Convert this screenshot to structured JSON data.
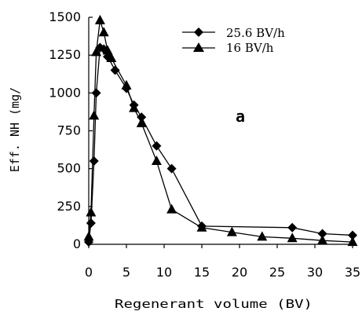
{
  "chart_data": {
    "type": "line",
    "xlabel": "Regenerant volume (BV)",
    "ylabel": "Eff. NH (mg/",
    "xlim": [
      0,
      35
    ],
    "ylim": [
      0,
      1500
    ],
    "x_ticks": [
      0,
      5,
      10,
      15,
      20,
      25,
      30,
      35
    ],
    "y_ticks": [
      0,
      250,
      500,
      750,
      1000,
      1250,
      1500
    ],
    "grid": false,
    "legend_position": "top-right",
    "annotation": "a",
    "series": [
      {
        "name": "25.6 BV/h",
        "marker": "diamond",
        "points": [
          [
            0,
            15
          ],
          [
            0.3,
            140
          ],
          [
            0.7,
            550
          ],
          [
            1,
            1000
          ],
          [
            1.5,
            1300
          ],
          [
            2,
            1290
          ],
          [
            2.5,
            1240
          ],
          [
            3.5,
            1150
          ],
          [
            5,
            1030
          ],
          [
            6,
            920
          ],
          [
            7,
            840
          ],
          [
            9,
            650
          ],
          [
            11,
            500
          ],
          [
            15,
            120
          ],
          [
            27,
            110
          ],
          [
            31,
            70
          ],
          [
            35,
            60
          ]
        ]
      },
      {
        "name": "16 BV/h",
        "marker": "triangle",
        "points": [
          [
            0,
            50
          ],
          [
            0.3,
            210
          ],
          [
            0.7,
            850
          ],
          [
            1,
            1270
          ],
          [
            1.5,
            1480
          ],
          [
            2,
            1400
          ],
          [
            2.5,
            1280
          ],
          [
            3,
            1230
          ],
          [
            5,
            1050
          ],
          [
            6,
            900
          ],
          [
            7,
            800
          ],
          [
            9,
            550
          ],
          [
            11,
            230
          ],
          [
            15,
            110
          ],
          [
            19,
            80
          ],
          [
            23,
            50
          ],
          [
            27,
            40
          ],
          [
            31,
            25
          ],
          [
            35,
            15
          ]
        ]
      }
    ]
  }
}
